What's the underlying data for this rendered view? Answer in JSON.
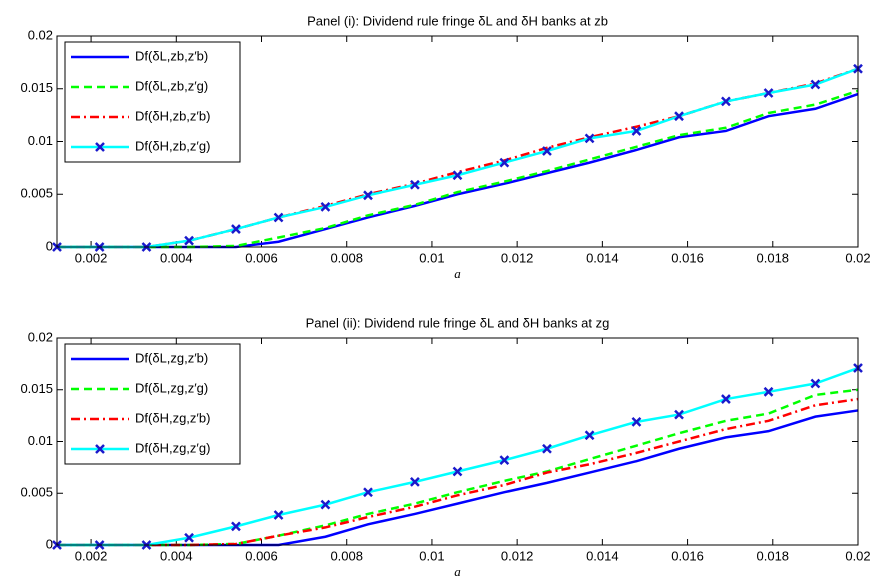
{
  "chart_data": [
    {
      "type": "line",
      "title": "Panel (i): Dividend rule fringe δL and δH banks at zb",
      "xlabel": "a",
      "x": [
        0.0012,
        0.0022,
        0.0033,
        0.0043,
        0.0054,
        0.0064,
        0.0075,
        0.0085,
        0.0096,
        0.0106,
        0.0117,
        0.0127,
        0.0137,
        0.0148,
        0.0158,
        0.0169,
        0.0179,
        0.019,
        0.02
      ],
      "xlim": [
        0.0012,
        0.02
      ],
      "ylim": [
        0,
        0.02
      ],
      "xticks": [
        0.002,
        0.004,
        0.006,
        0.008,
        0.01,
        0.012,
        0.014,
        0.016,
        0.018,
        0.02
      ],
      "yticks": [
        0,
        0.005,
        0.01,
        0.015,
        0.02
      ],
      "legend": "upper left",
      "series": [
        {
          "name": "Df(δL,zb,z′b)",
          "color": "#0000ff",
          "dash": "solid",
          "values": [
            0,
            0,
            0,
            0,
            0,
            0.0005,
            0.0017,
            0.0028,
            0.0039,
            0.005,
            0.006,
            0.007,
            0.008,
            0.0092,
            0.0104,
            0.011,
            0.0124,
            0.0131,
            0.0145
          ]
        },
        {
          "name": "Df(δL,zb,z′g)",
          "color": "#00ff00",
          "dash": "dashed",
          "values": [
            0,
            0,
            0,
            0,
            0.0001,
            0.0009,
            0.0018,
            0.003,
            0.004,
            0.0052,
            0.0062,
            0.0072,
            0.0083,
            0.0095,
            0.0106,
            0.0113,
            0.0127,
            0.0135,
            0.0148
          ]
        },
        {
          "name": "Df(δH,zb,z′b)",
          "color": "#ff0000",
          "dash": "dashdot",
          "values": [
            0,
            0,
            0,
            0.0006,
            0.0017,
            0.0028,
            0.0039,
            0.005,
            0.006,
            0.0071,
            0.0082,
            0.0094,
            0.0104,
            0.0114,
            0.0124,
            0.0138,
            0.0146,
            0.0155,
            0.0169
          ]
        },
        {
          "name": "Df(δH,zb,z′g)",
          "color": "#00ffff",
          "dash": "solid",
          "marker": "x",
          "marker_color": "#1a1acc",
          "values": [
            0,
            0,
            0,
            0.0006,
            0.0017,
            0.0028,
            0.0038,
            0.0049,
            0.0059,
            0.0068,
            0.008,
            0.0091,
            0.0103,
            0.011,
            0.0124,
            0.0138,
            0.0146,
            0.0154,
            0.0169
          ]
        }
      ]
    },
    {
      "type": "line",
      "title": "Panel (ii): Dividend rule fringe δL and δH banks at zg",
      "xlabel": "a",
      "x": [
        0.0012,
        0.0022,
        0.0033,
        0.0043,
        0.0054,
        0.0064,
        0.0075,
        0.0085,
        0.0096,
        0.0106,
        0.0117,
        0.0127,
        0.0137,
        0.0148,
        0.0158,
        0.0169,
        0.0179,
        0.019,
        0.02
      ],
      "xlim": [
        0.0012,
        0.02
      ],
      "ylim": [
        0,
        0.02
      ],
      "xticks": [
        0.002,
        0.004,
        0.006,
        0.008,
        0.01,
        0.012,
        0.014,
        0.016,
        0.018,
        0.02
      ],
      "yticks": [
        0,
        0.005,
        0.01,
        0.015,
        0.02
      ],
      "legend": "upper left",
      "series": [
        {
          "name": "Df(δL,zg,z′b)",
          "color": "#0000ff",
          "dash": "solid",
          "values": [
            0,
            0,
            0,
            0,
            0,
            0,
            0.0008,
            0.002,
            0.003,
            0.004,
            0.0051,
            0.006,
            0.007,
            0.0081,
            0.0093,
            0.0104,
            0.011,
            0.0124,
            0.013
          ]
        },
        {
          "name": "Df(δL,zg,z′g)",
          "color": "#00ff00",
          "dash": "dashed",
          "values": [
            0,
            0,
            0,
            0,
            0.0001,
            0.0009,
            0.0019,
            0.003,
            0.004,
            0.0051,
            0.0062,
            0.0071,
            0.0083,
            0.0096,
            0.0108,
            0.012,
            0.0127,
            0.0145,
            0.015
          ]
        },
        {
          "name": "Df(δH,zg,z′b)",
          "color": "#ff0000",
          "dash": "dashdot",
          "values": [
            0,
            0,
            0,
            0,
            0.0001,
            0.0009,
            0.0017,
            0.0027,
            0.0037,
            0.0048,
            0.0058,
            0.007,
            0.0078,
            0.0089,
            0.01,
            0.0112,
            0.012,
            0.0135,
            0.0141
          ]
        },
        {
          "name": "Df(δH,zg,z′g)",
          "color": "#00ffff",
          "dash": "solid",
          "marker": "x",
          "marker_color": "#1a1acc",
          "values": [
            0,
            0,
            0,
            0.0007,
            0.0018,
            0.0029,
            0.0039,
            0.0051,
            0.0061,
            0.0071,
            0.0082,
            0.0093,
            0.0106,
            0.0119,
            0.0126,
            0.0141,
            0.0148,
            0.0156,
            0.0171
          ]
        }
      ]
    }
  ]
}
